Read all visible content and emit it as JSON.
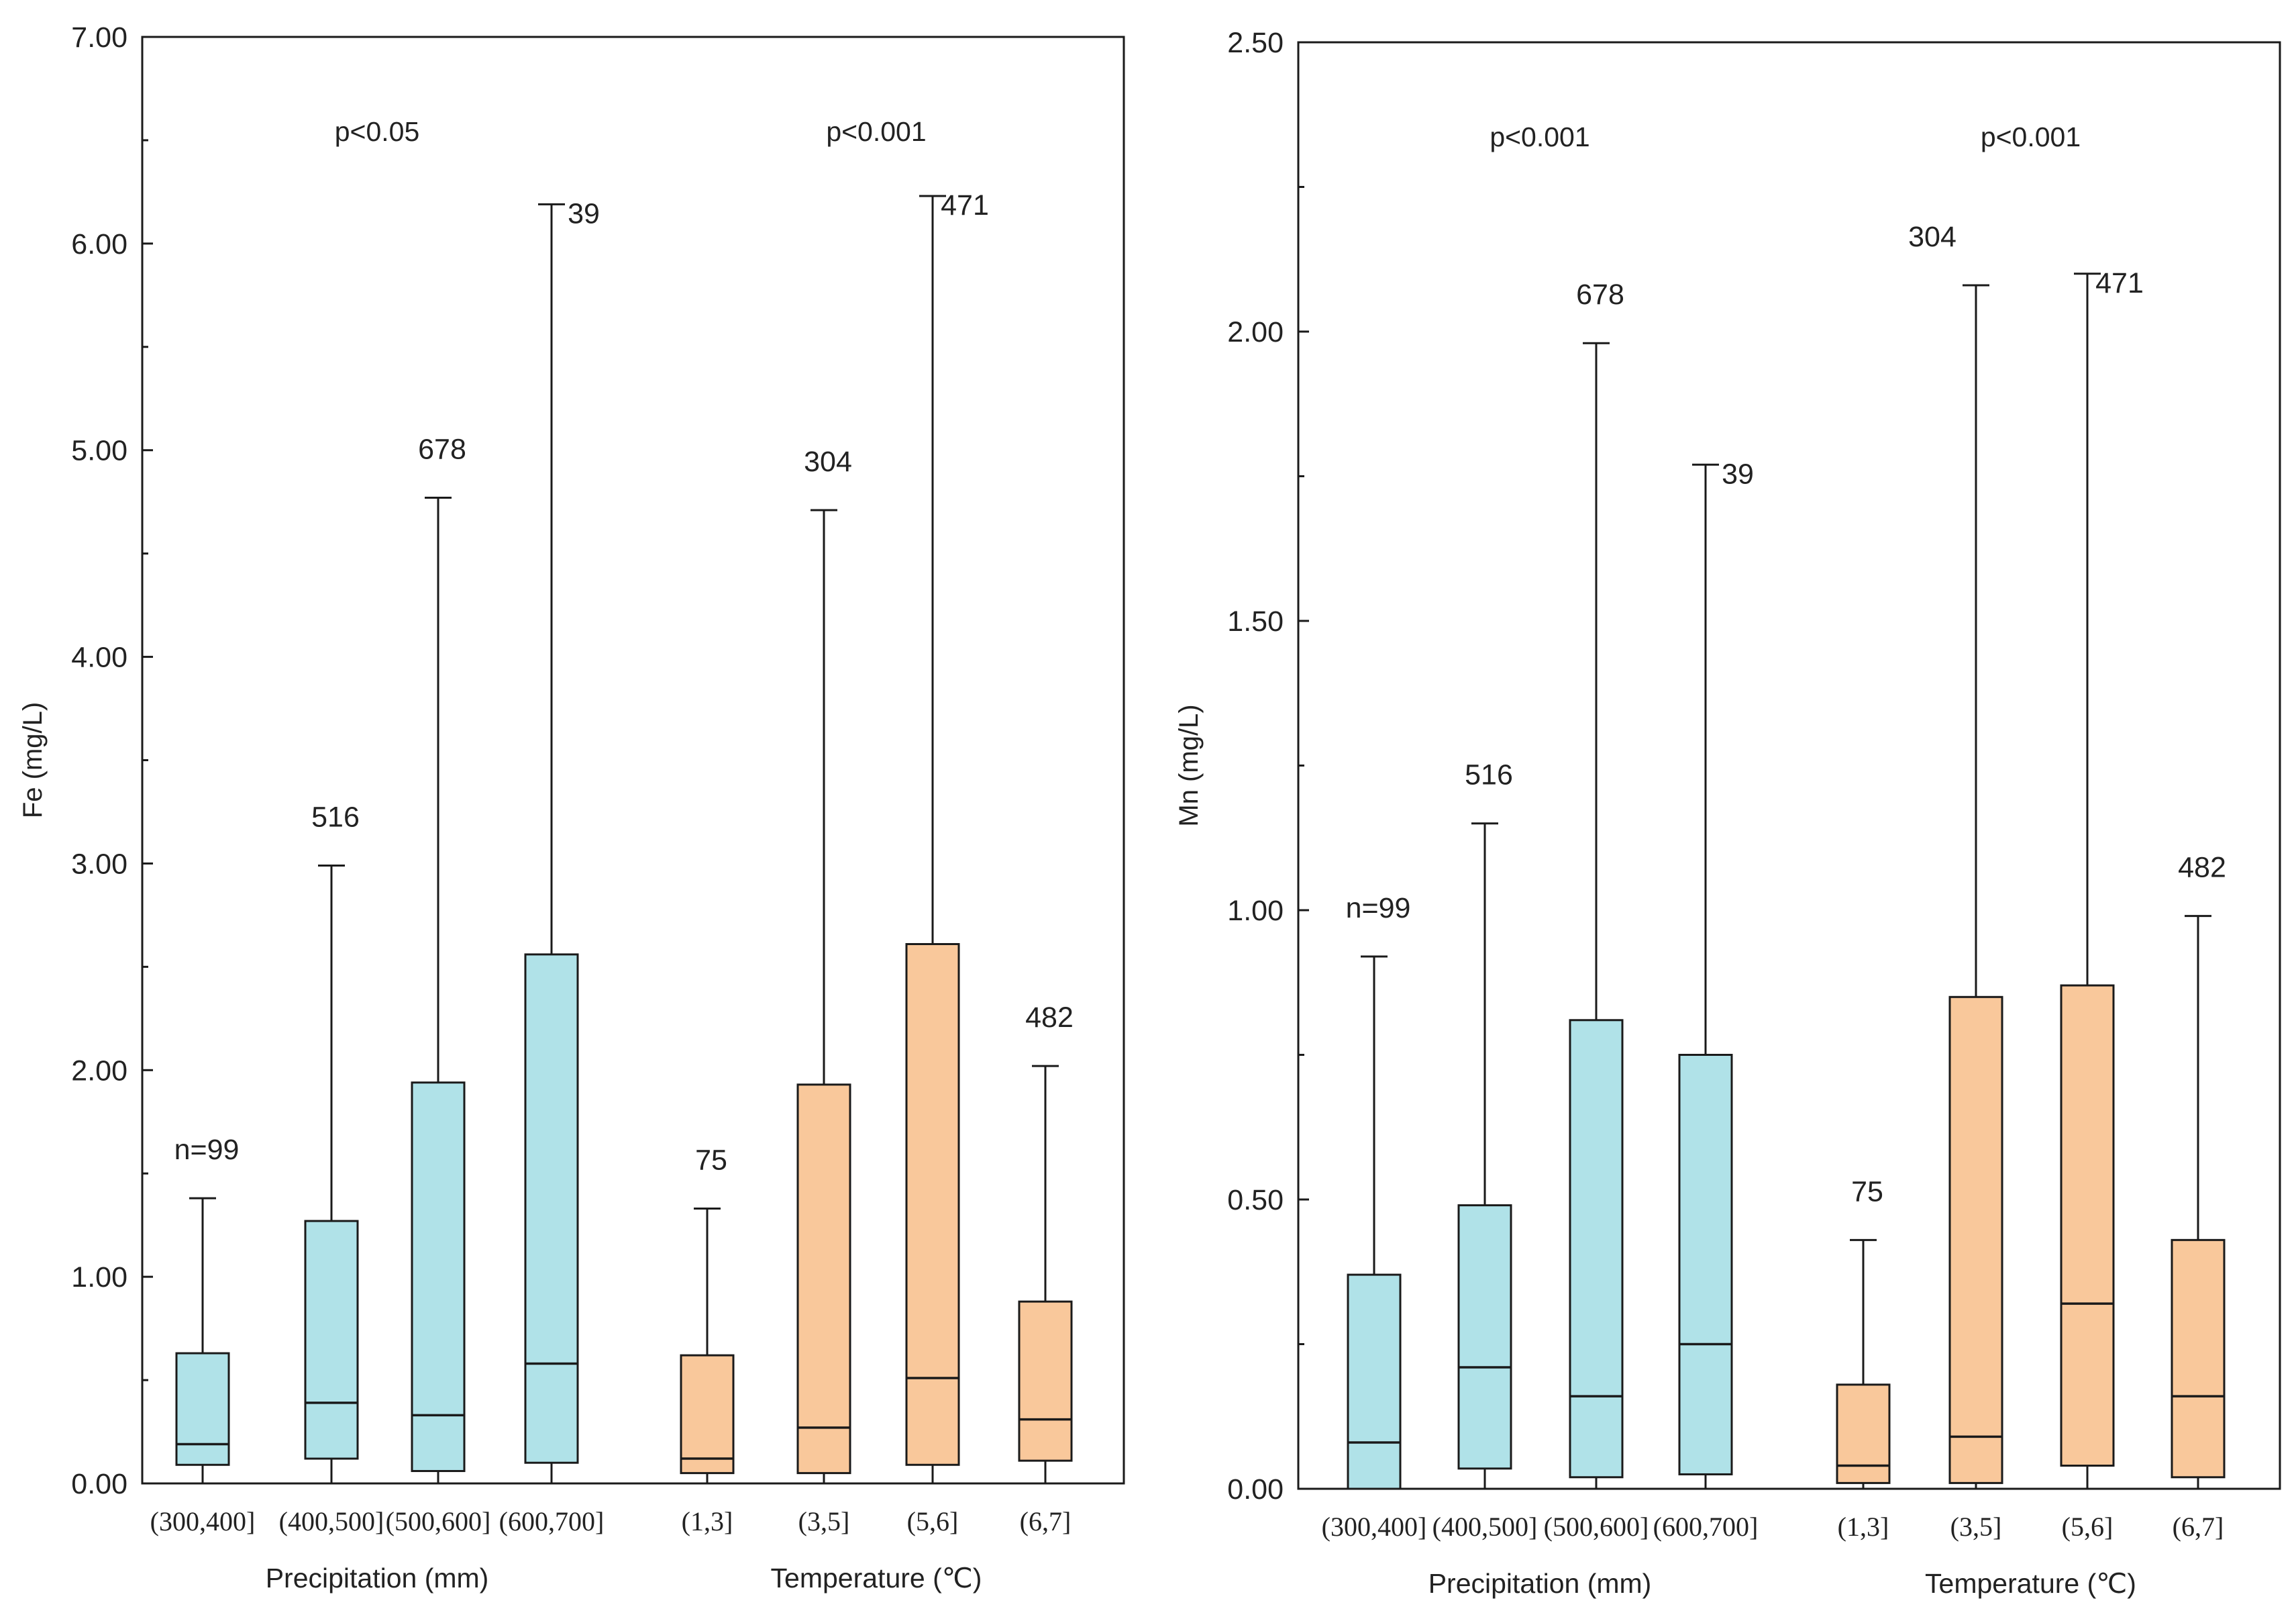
{
  "colors": {
    "precipitation": "#b0e2e8",
    "temperature": "#f9c89b",
    "stroke": "#1a1a1a"
  },
  "chart_data": [
    {
      "type": "box",
      "ylabel": "Fe (mg/L)",
      "ylim": [
        0,
        7
      ],
      "yticks": [
        0,
        1,
        2,
        3,
        4,
        5,
        6,
        7
      ],
      "ytick_labels": [
        "0.00",
        "1.00",
        "2.00",
        "3.00",
        "4.00",
        "5.00",
        "6.00",
        "7.00"
      ],
      "groups": [
        {
          "name": "Precipitation (mm)",
          "p_label": "p<0.05",
          "color": "precipitation",
          "categories": [
            {
              "label": "(300,400]",
              "min": 0.0,
              "q1": 0.09,
              "median": 0.19,
              "q3": 0.63,
              "max": 1.38,
              "n": "n=99"
            },
            {
              "label": "(400,500]",
              "min": 0.0,
              "q1": 0.12,
              "median": 0.39,
              "q3": 1.27,
              "max": 2.99,
              "n": "516"
            },
            {
              "label": "(500,600]",
              "min": 0.0,
              "q1": 0.06,
              "median": 0.33,
              "q3": 1.94,
              "max": 4.77,
              "n": "678"
            },
            {
              "label": "(600,700]",
              "min": 0.0,
              "q1": 0.1,
              "median": 0.58,
              "q3": 2.56,
              "max": 6.19,
              "n": "39"
            }
          ]
        },
        {
          "name": "Temperature (℃)",
          "p_label": "p<0.001",
          "color": "temperature",
          "categories": [
            {
              "label": "(1,3]",
              "min": 0.0,
              "q1": 0.05,
              "median": 0.12,
              "q3": 0.62,
              "max": 1.33,
              "n": "75"
            },
            {
              "label": "(3,5]",
              "min": 0.0,
              "q1": 0.05,
              "median": 0.27,
              "q3": 1.93,
              "max": 4.71,
              "n": "304"
            },
            {
              "label": "(5,6]",
              "min": 0.0,
              "q1": 0.09,
              "median": 0.51,
              "q3": 2.61,
              "max": 6.23,
              "n": "471"
            },
            {
              "label": "(6,7]",
              "min": 0.0,
              "q1": 0.11,
              "median": 0.31,
              "q3": 0.88,
              "max": 2.02,
              "n": "482"
            }
          ]
        }
      ]
    },
    {
      "type": "box",
      "ylabel": "Mn (mg/L)",
      "ylim": [
        0,
        2.5
      ],
      "yticks": [
        0,
        0.5,
        1,
        1.5,
        2,
        2.5
      ],
      "ytick_labels": [
        "0.00",
        "0.50",
        "1.00",
        "1.50",
        "2.00",
        "2.50"
      ],
      "groups": [
        {
          "name": "Precipitation (mm)",
          "p_label": "p<0.001",
          "color": "precipitation",
          "categories": [
            {
              "label": "(300,400]",
              "min": 0.0,
              "q1": 0.0,
              "median": 0.08,
              "q3": 0.37,
              "max": 0.92,
              "n": "n=99"
            },
            {
              "label": "(400,500]",
              "min": 0.0,
              "q1": 0.035,
              "median": 0.21,
              "q3": 0.49,
              "max": 1.15,
              "n": "516"
            },
            {
              "label": "(500,600]",
              "min": 0.0,
              "q1": 0.02,
              "median": 0.16,
              "q3": 0.81,
              "max": 1.98,
              "n": "678"
            },
            {
              "label": "(600,700]",
              "min": 0.0,
              "q1": 0.025,
              "median": 0.25,
              "q3": 0.75,
              "max": 1.77,
              "n": "39"
            }
          ]
        },
        {
          "name": "Temperature (℃)",
          "p_label": "p<0.001",
          "color": "temperature",
          "categories": [
            {
              "label": "(1,3]",
              "min": 0.0,
              "q1": 0.01,
              "median": 0.04,
              "q3": 0.18,
              "max": 0.43,
              "n": "75"
            },
            {
              "label": "(3,5]",
              "min": 0.0,
              "q1": 0.01,
              "median": 0.09,
              "q3": 0.85,
              "max": 2.08,
              "n": "304"
            },
            {
              "label": "(5,6]",
              "min": 0.0,
              "q1": 0.04,
              "median": 0.32,
              "q3": 0.87,
              "max": 2.1,
              "n": "471"
            },
            {
              "label": "(6,7]",
              "min": 0.0,
              "q1": 0.02,
              "median": 0.16,
              "q3": 0.43,
              "max": 0.99,
              "n": "482"
            }
          ]
        }
      ]
    }
  ]
}
